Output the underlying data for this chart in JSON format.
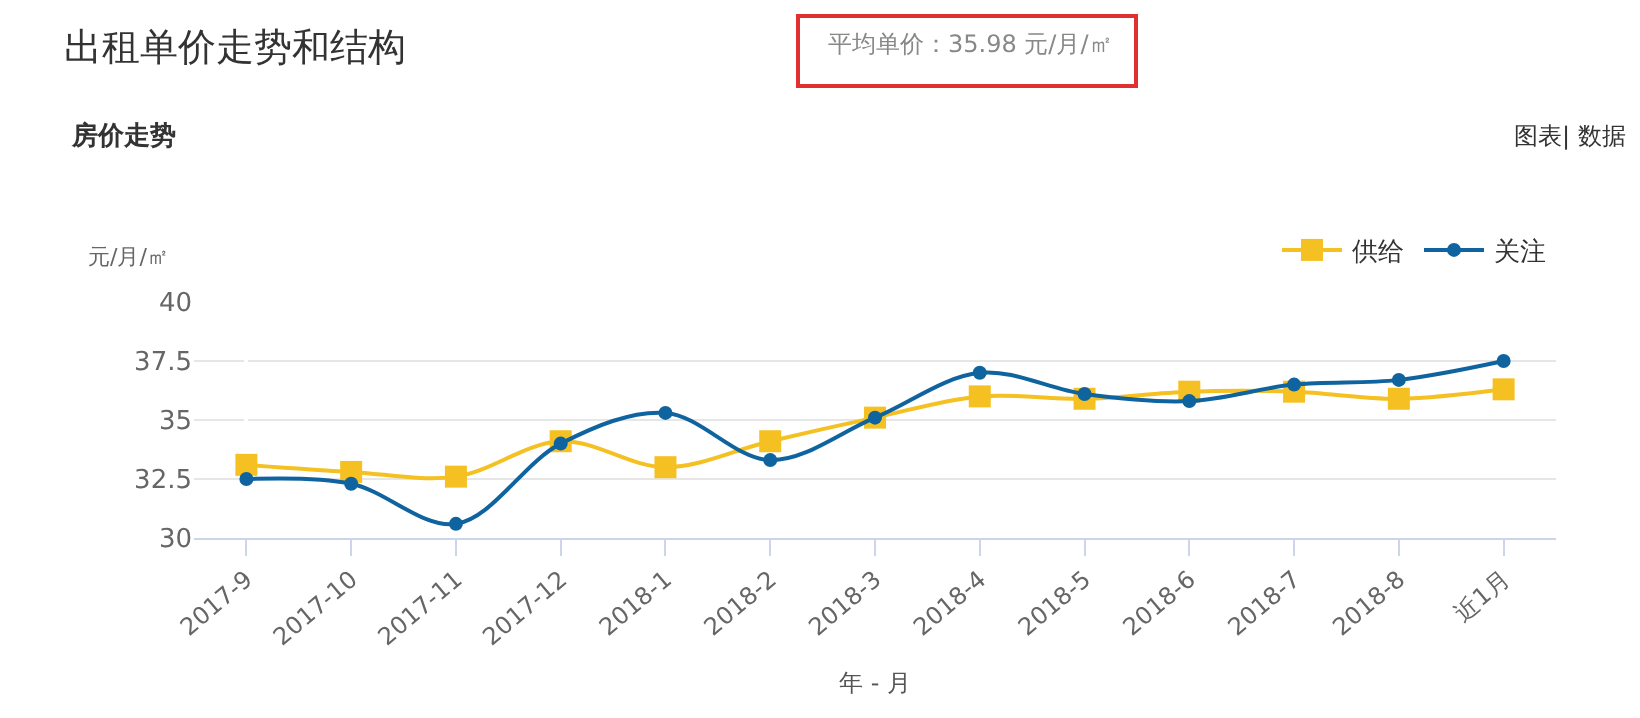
{
  "chart_data": {
    "type": "line",
    "title": "出租单价走势和结构",
    "subtitle": "房价走势",
    "annotations": [
      "平均单价：35.98 元/月/㎡",
      "图表| 数据"
    ],
    "xlabel": "年 - 月",
    "ylabel": "元/月/㎡",
    "categories": [
      "2017-9",
      "2017-10",
      "2017-11",
      "2017-12",
      "2018-1",
      "2018-2",
      "2018-3",
      "2018-4",
      "2018-5",
      "2018-6",
      "2018-7",
      "2018-8",
      "近1月"
    ],
    "series": [
      {
        "name": "供给",
        "color": "#f5c022",
        "marker": "square",
        "values": [
          33.1,
          32.8,
          32.6,
          34.1,
          33.0,
          34.1,
          35.1,
          36.0,
          35.9,
          36.2,
          36.2,
          35.9,
          36.3
        ]
      },
      {
        "name": "关注",
        "color": "#0f64a0",
        "marker": "circle",
        "values": [
          32.5,
          32.3,
          30.6,
          34.0,
          35.3,
          33.3,
          35.1,
          37.0,
          36.1,
          35.8,
          36.5,
          36.7,
          37.5
        ]
      }
    ],
    "ylim": [
      30,
      40
    ],
    "yticks": [
      30,
      32.5,
      35,
      37.5,
      40
    ],
    "grid": "y",
    "legend": "top right",
    "line_style": "solid"
  }
}
